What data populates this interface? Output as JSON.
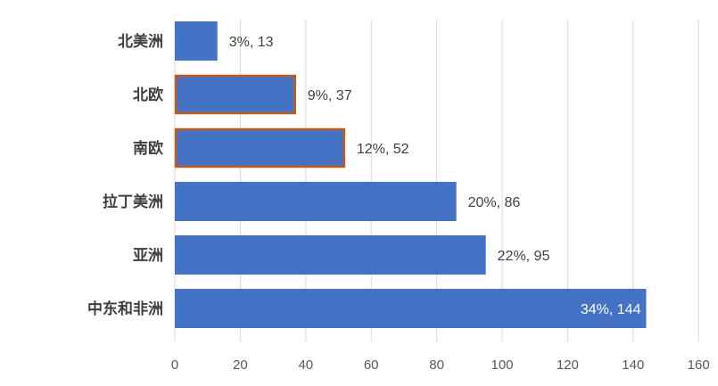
{
  "chart_data": {
    "type": "bar",
    "orientation": "horizontal",
    "categories": [
      "北美洲",
      "北欧",
      "南欧",
      "拉丁美洲",
      "亚洲",
      "中东和非洲"
    ],
    "values": [
      13,
      37,
      52,
      86,
      95,
      144
    ],
    "percentages": [
      "3%",
      "9%",
      "12%",
      "20%",
      "22%",
      "34%"
    ],
    "data_labels": [
      "3%, 13",
      "9%, 37",
      "12%, 52",
      "20%, 86",
      "22%, 95",
      "34%, 144"
    ],
    "highlighted": [
      false,
      true,
      true,
      false,
      false,
      false
    ],
    "xlim": [
      0,
      160
    ],
    "x_ticks": [
      "0",
      "20",
      "40",
      "60",
      "80",
      "100",
      "120",
      "140",
      "160"
    ],
    "grid": true,
    "legend": "none",
    "title": "",
    "xlabel": "",
    "ylabel": "",
    "colors": {
      "bar": "#4472c4",
      "highlight_border": "#c55a11",
      "grid": "#d9d9d9"
    }
  }
}
